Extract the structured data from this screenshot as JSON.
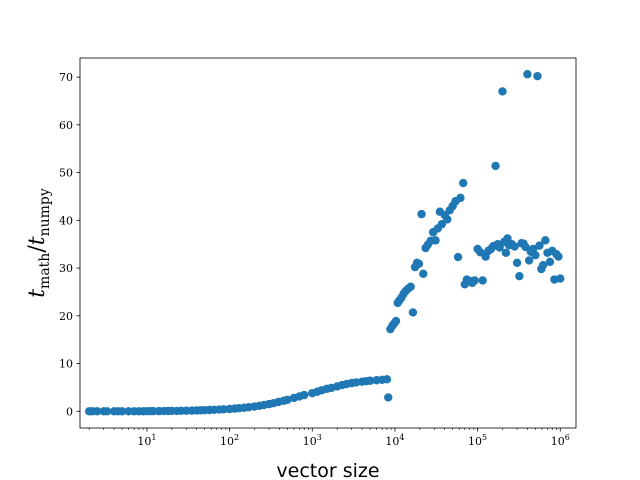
{
  "chart_data": {
    "type": "scatter",
    "xlabel": "vector size",
    "ylabel": {
      "var": "t",
      "num_sub": "math",
      "den_sub": "numpy"
    },
    "xscale": "log",
    "xlim": [
      1.55,
      1550000
    ],
    "ylim": [
      -3.5,
      74
    ],
    "xticks": [
      {
        "exp": 1,
        "value": 10
      },
      {
        "exp": 2,
        "value": 100
      },
      {
        "exp": 3,
        "value": 1000
      },
      {
        "exp": 4,
        "value": 10000
      },
      {
        "exp": 5,
        "value": 100000
      },
      {
        "exp": 6,
        "value": 1000000
      }
    ],
    "yticks": [
      "0",
      "10",
      "20",
      "30",
      "40",
      "50",
      "60",
      "70"
    ],
    "grid": false,
    "series": [
      {
        "color": "#1f77b4",
        "points": [
          [
            2,
            0
          ],
          [
            2.2,
            0
          ],
          [
            2.5,
            0
          ],
          [
            3,
            0
          ],
          [
            3.3,
            0
          ],
          [
            4,
            0
          ],
          [
            4.5,
            0
          ],
          [
            5,
            0
          ],
          [
            6,
            0
          ],
          [
            7,
            0
          ],
          [
            8,
            0
          ],
          [
            9,
            0
          ],
          [
            10,
            0.02
          ],
          [
            11,
            0.02
          ],
          [
            12,
            0.03
          ],
          [
            14,
            0.04
          ],
          [
            16,
            0.05
          ],
          [
            18,
            0.06
          ],
          [
            20,
            0.07
          ],
          [
            23,
            0.08
          ],
          [
            26,
            0.1
          ],
          [
            30,
            0.12
          ],
          [
            35,
            0.14
          ],
          [
            40,
            0.17
          ],
          [
            45,
            0.2
          ],
          [
            50,
            0.23
          ],
          [
            57,
            0.27
          ],
          [
            65,
            0.31
          ],
          [
            75,
            0.36
          ],
          [
            85,
            0.41
          ],
          [
            100,
            0.48
          ],
          [
            115,
            0.56
          ],
          [
            130,
            0.64
          ],
          [
            150,
            0.74
          ],
          [
            170,
            0.85
          ],
          [
            200,
            1.0
          ],
          [
            230,
            1.15
          ],
          [
            260,
            1.3
          ],
          [
            300,
            1.5
          ],
          [
            340,
            1.7
          ],
          [
            390,
            1.95
          ],
          [
            450,
            2.2
          ],
          [
            500,
            2.4
          ],
          [
            600,
            2.8
          ],
          [
            700,
            3.1
          ],
          [
            800,
            3.4
          ],
          [
            1000,
            3.8
          ],
          [
            1150,
            4.1
          ],
          [
            1300,
            4.4
          ],
          [
            1500,
            4.7
          ],
          [
            1700,
            4.9
          ],
          [
            2000,
            5.2
          ],
          [
            2300,
            5.5
          ],
          [
            2600,
            5.7
          ],
          [
            3000,
            5.9
          ],
          [
            3400,
            6.05
          ],
          [
            4000,
            6.2
          ],
          [
            4500,
            6.3
          ],
          [
            5000,
            6.4
          ],
          [
            6000,
            6.5
          ],
          [
            7000,
            6.6
          ],
          [
            8000,
            6.7
          ],
          [
            8300,
            2.9
          ],
          [
            8800,
            17.2
          ],
          [
            9300,
            17.9
          ],
          [
            9800,
            18.4
          ],
          [
            10300,
            18.9
          ],
          [
            10800,
            22.7
          ],
          [
            11300,
            23.2
          ],
          [
            12000,
            23.8
          ],
          [
            12700,
            24.6
          ],
          [
            13500,
            25.2
          ],
          [
            14500,
            25.7
          ],
          [
            15500,
            26.1
          ],
          [
            16500,
            20.7
          ],
          [
            17500,
            30.2
          ],
          [
            18500,
            31.1
          ],
          [
            19500,
            30.9
          ],
          [
            21000,
            41.3
          ],
          [
            22000,
            28.8
          ],
          [
            23500,
            34.2
          ],
          [
            25000,
            34.9
          ],
          [
            27000,
            35.7
          ],
          [
            29000,
            37.5
          ],
          [
            31000,
            35.8
          ],
          [
            33000,
            38.3
          ],
          [
            35000,
            41.8
          ],
          [
            37000,
            39.2
          ],
          [
            40000,
            41.1
          ],
          [
            43000,
            40.2
          ],
          [
            46000,
            42.1
          ],
          [
            50000,
            43.0
          ],
          [
            54000,
            44.0
          ],
          [
            58000,
            32.3
          ],
          [
            62000,
            44.7
          ],
          [
            67000,
            47.8
          ],
          [
            70000,
            26.6
          ],
          [
            74000,
            27.6
          ],
          [
            80000,
            27.3
          ],
          [
            86000,
            26.9
          ],
          [
            92000,
            27.4
          ],
          [
            100000,
            34.0
          ],
          [
            108000,
            33.3
          ],
          [
            115000,
            27.4
          ],
          [
            125000,
            32.4
          ],
          [
            135000,
            33.6
          ],
          [
            145000,
            34.0
          ],
          [
            155000,
            34.6
          ],
          [
            165000,
            51.4
          ],
          [
            175000,
            35.0
          ],
          [
            185000,
            34.3
          ],
          [
            200000,
            67.0
          ],
          [
            210000,
            35.5
          ],
          [
            220000,
            33.2
          ],
          [
            230000,
            36.2
          ],
          [
            240000,
            34.8
          ],
          [
            260000,
            35.0
          ],
          [
            280000,
            34.5
          ],
          [
            300000,
            31.1
          ],
          [
            320000,
            28.3
          ],
          [
            340000,
            35.2
          ],
          [
            360000,
            35.1
          ],
          [
            380000,
            34.4
          ],
          [
            400000,
            70.6
          ],
          [
            420000,
            31.6
          ],
          [
            440000,
            33.4
          ],
          [
            470000,
            34.0
          ],
          [
            500000,
            32.7
          ],
          [
            530000,
            70.2
          ],
          [
            560000,
            34.7
          ],
          [
            590000,
            29.8
          ],
          [
            620000,
            30.6
          ],
          [
            660000,
            35.8
          ],
          [
            700000,
            33.2
          ],
          [
            750000,
            31.3
          ],
          [
            800000,
            33.6
          ],
          [
            850000,
            27.6
          ],
          [
            900000,
            32.9
          ],
          [
            950000,
            32.4
          ],
          [
            1000000,
            27.8
          ]
        ]
      }
    ]
  }
}
